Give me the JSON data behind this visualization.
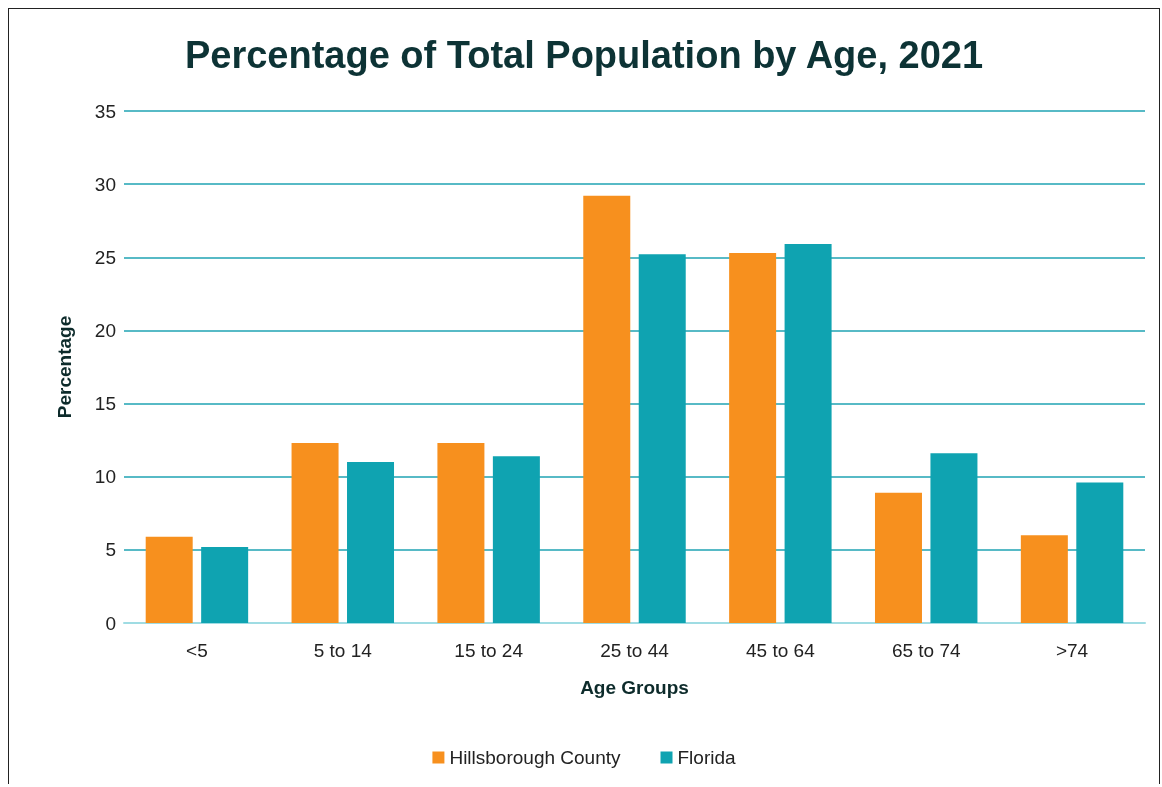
{
  "chart_data": {
    "type": "bar",
    "title": "Percentage of Total Population by Age, 2021",
    "xlabel": "Age Groups",
    "ylabel": "Percentage",
    "categories": [
      "<5",
      "5 to 14",
      "15 to 24",
      "25 to 44",
      "45 to 64",
      "65 to 74",
      ">74"
    ],
    "series": [
      {
        "name": "Hillsborough County",
        "color": "#f7901e",
        "values": [
          5.9,
          12.3,
          12.3,
          29.2,
          25.3,
          8.9,
          6.0
        ]
      },
      {
        "name": "Florida",
        "color": "#0fa3b1",
        "values": [
          5.2,
          11.0,
          11.4,
          25.2,
          25.9,
          11.6,
          9.6
        ]
      }
    ],
    "ylim": [
      0,
      35
    ],
    "yticks": [
      0,
      5,
      10,
      15,
      20,
      25,
      30,
      35
    ],
    "grid": "y",
    "legend": "bottom"
  }
}
